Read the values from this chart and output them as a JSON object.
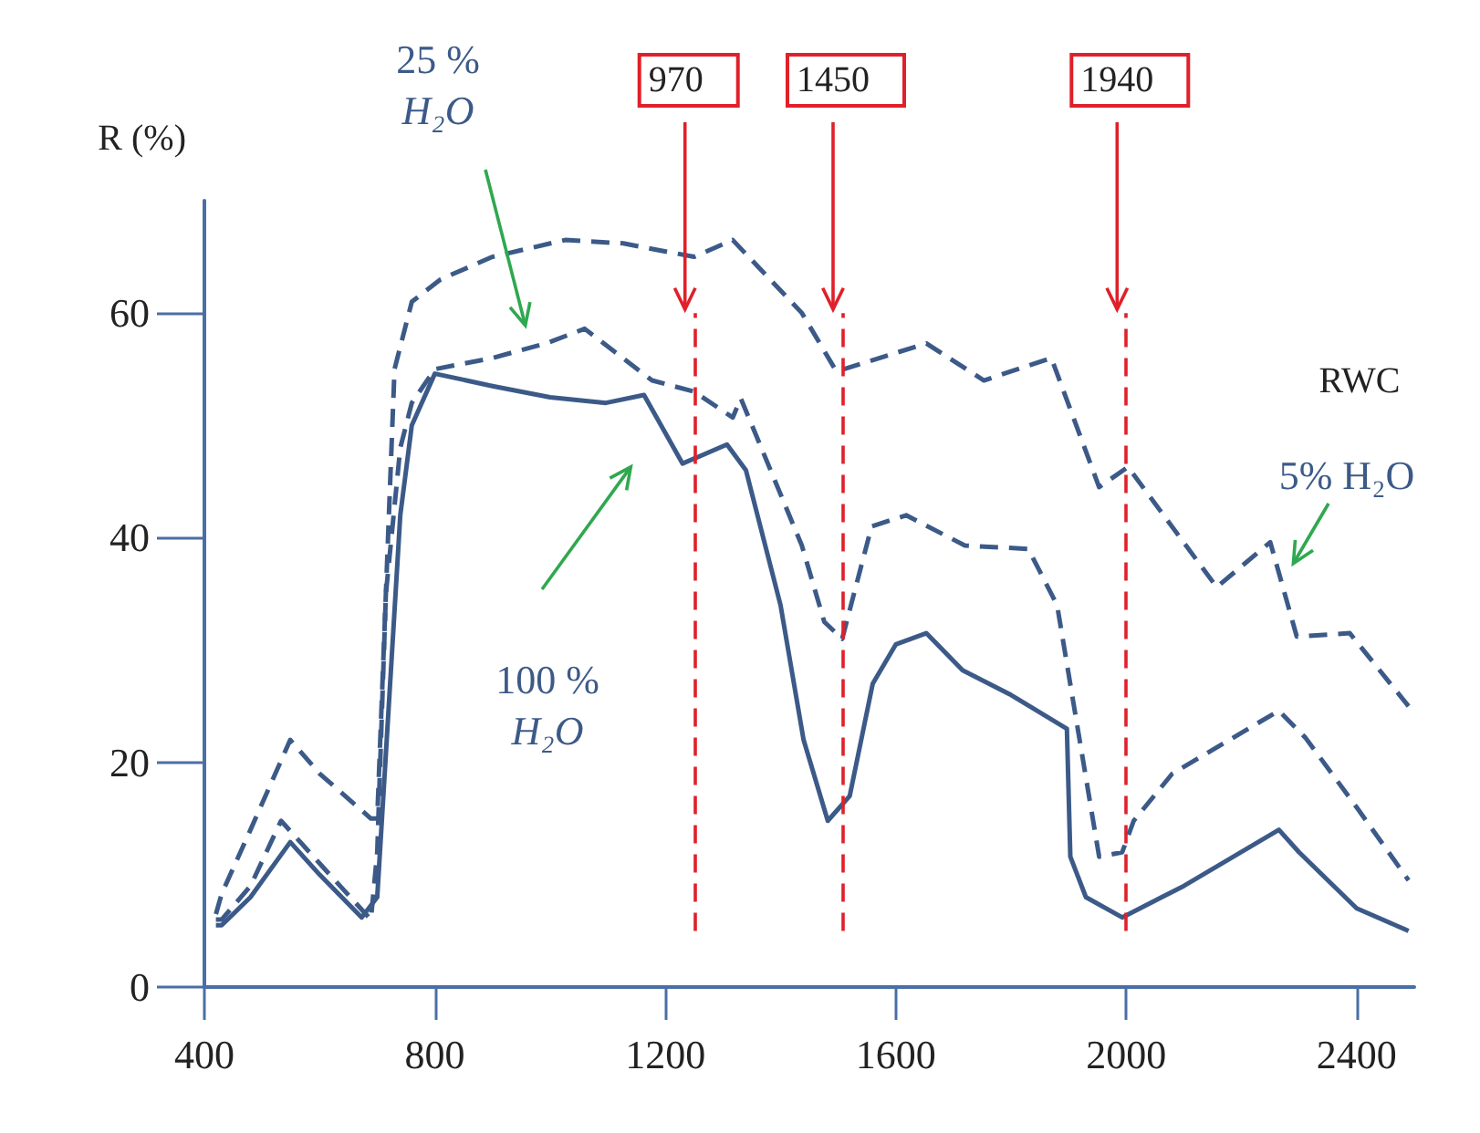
{
  "chart_data": {
    "type": "line",
    "ylabel": "R (%)",
    "xlim": [
      400,
      2500
    ],
    "xticks": [
      400,
      800,
      1200,
      1600,
      2000,
      2400
    ],
    "ylim": [
      0,
      70
    ],
    "yticks": [
      0,
      20,
      40,
      60
    ],
    "grid": false,
    "legend": false,
    "marker": "none",
    "annotations": [
      "RWC",
      "970",
      "1450",
      "1940"
    ],
    "ref_lines": [
      {
        "axis": "x",
        "value": 1250,
        "color": "#e0202a",
        "line_style": "dashed"
      },
      {
        "axis": "x",
        "value": 1507,
        "color": "#e0202a",
        "line_style": "dashed"
      },
      {
        "axis": "x",
        "value": 2000,
        "color": "#e0202a",
        "line_style": "dashed"
      }
    ],
    "series": [
      {
        "name": "100 % H₂O",
        "color": "#3c5a88",
        "line_style": "solid",
        "x": [
          420,
          430,
          480,
          549,
          600,
          673,
          700,
          720,
          740,
          760,
          800,
          900,
          1000,
          1097,
          1163,
          1230,
          1307,
          1340,
          1400,
          1440,
          1482,
          1520,
          1560,
          1600,
          1653,
          1716,
          1800,
          1897,
          1903,
          1930,
          1993,
          2100,
          2265,
          2300,
          2400,
          2490
        ],
        "values": [
          5.5,
          5.5,
          8,
          12.9,
          10,
          6.2,
          8,
          25,
          42,
          50,
          54.6,
          53.5,
          52.5,
          52,
          52.7,
          46.6,
          48.3,
          46,
          34,
          22,
          14.8,
          17,
          27,
          30.5,
          31.5,
          28.2,
          26,
          23,
          11.6,
          8,
          6.2,
          9,
          14,
          12,
          7,
          5
        ]
      },
      {
        "name": "25 % H₂O",
        "color": "#3c5a88",
        "line_style": "dashed",
        "x": [
          420,
          430,
          480,
          533,
          600,
          689,
          700,
          715,
          740,
          760,
          800,
          900,
          993,
          1060,
          1177,
          1250,
          1317,
          1331,
          1437,
          1476,
          1507,
          1558,
          1618,
          1720,
          1830,
          1880,
          1953,
          1993,
          2013,
          2080,
          2265,
          2311,
          2400,
          2490
        ],
        "values": [
          6,
          6,
          9,
          14.8,
          11,
          6,
          12,
          35,
          48,
          52,
          55,
          56,
          57.3,
          58.6,
          54,
          53,
          50.7,
          52.4,
          39.3,
          32.5,
          31,
          41,
          42,
          39.3,
          39,
          34,
          11.6,
          12,
          14.8,
          19,
          24.6,
          22.2,
          16,
          9.5
        ]
      },
      {
        "name": "5% H₂O",
        "color": "#3c5a88",
        "line_style": "dashed",
        "x": [
          420,
          430,
          480,
          549,
          600,
          689,
          700,
          715,
          730,
          760,
          810,
          900,
          1026,
          1127,
          1250,
          1317,
          1437,
          1497,
          1653,
          1753,
          1870,
          1953,
          2003,
          2157,
          2250,
          2296,
          2388,
          2490
        ],
        "values": [
          6.5,
          8.3,
          14,
          22,
          19,
          15,
          15,
          35,
          55,
          61,
          63,
          65,
          66.5,
          66.2,
          65,
          66.5,
          60,
          54.8,
          57.3,
          54,
          56,
          44.5,
          46.3,
          35.6,
          39.6,
          31.2,
          31.5,
          25
        ]
      }
    ]
  }
}
